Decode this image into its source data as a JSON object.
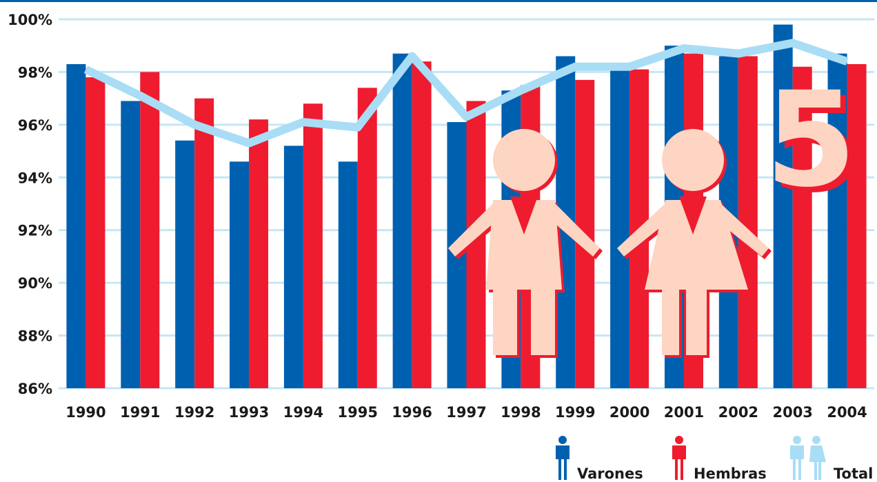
{
  "chart_data": {
    "type": "bar_line",
    "categories": [
      "1990",
      "1991",
      "1992",
      "1993",
      "1994",
      "1995",
      "1996",
      "1997",
      "1998",
      "1999",
      "2000",
      "2001",
      "2002",
      "2003",
      "2004"
    ],
    "series": [
      {
        "name": "Varones",
        "color": "#0060b0",
        "values": [
          98.3,
          96.9,
          95.4,
          94.6,
          95.2,
          94.6,
          98.7,
          96.1,
          97.3,
          98.6,
          98.1,
          99.0,
          98.6,
          99.8,
          98.7
        ]
      },
      {
        "name": "Hembras",
        "color": "#ee1c2e",
        "values": [
          97.8,
          98.0,
          97.0,
          96.2,
          96.8,
          97.4,
          98.4,
          96.9,
          97.5,
          97.7,
          98.1,
          98.7,
          98.6,
          98.2,
          98.3
        ]
      },
      {
        "name": "Total",
        "color": "#a8ddf5",
        "type": "line",
        "values": [
          98.1,
          97.1,
          96.0,
          95.3,
          96.1,
          95.9,
          98.6,
          96.3,
          97.3,
          98.2,
          98.2,
          98.9,
          98.7,
          99.1,
          98.4
        ]
      }
    ],
    "ylim": [
      86,
      100
    ],
    "yticks": [
      {
        "value": 86,
        "label": "86%"
      },
      {
        "value": 88,
        "label": "88%"
      },
      {
        "value": 90,
        "label": "90%"
      },
      {
        "value": 92,
        "label": "92%"
      },
      {
        "value": 94,
        "label": "94%"
      },
      {
        "value": 96,
        "label": "96%"
      },
      {
        "value": 98,
        "label": "98%"
      },
      {
        "value": 100,
        "label": "100%"
      }
    ],
    "grid": true,
    "legend": "bottom-right"
  }
}
